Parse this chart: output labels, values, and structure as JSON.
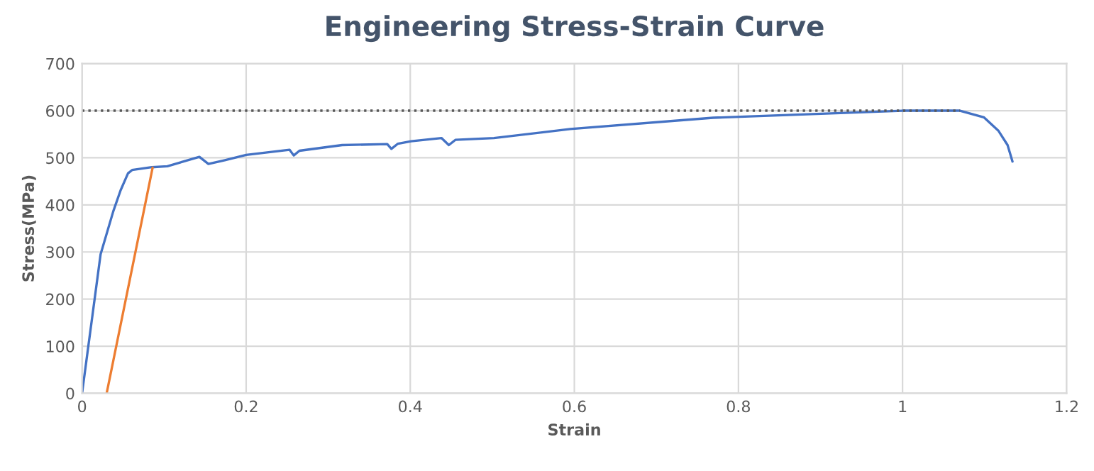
{
  "chart_data": {
    "type": "line",
    "title": "Engineering Stress-Strain Curve",
    "xlabel": "Strain",
    "ylabel": "Stress(MPa)",
    "series": [
      {
        "color": "#4472c4",
        "line_style": "solid",
        "x": [
          0,
          0.0226,
          0.038,
          0.047,
          0.056,
          0.061,
          0.085,
          0.104,
          0.143,
          0.154,
          0.174,
          0.2,
          0.253,
          0.258,
          0.265,
          0.317,
          0.372,
          0.377,
          0.385,
          0.401,
          0.438,
          0.447,
          0.455,
          0.502,
          0.595,
          0.769,
          1.0,
          1.07,
          1.099,
          1.117,
          1.128,
          1.134
        ],
        "values": [
          0,
          295,
          386,
          431,
          467,
          474,
          480,
          482,
          502,
          487,
          495,
          506,
          517,
          505,
          515,
          527,
          529,
          519,
          530,
          535,
          542,
          527,
          538,
          542,
          561,
          585,
          600,
          600,
          586,
          557,
          527,
          492
        ]
      },
      {
        "color": "#ed7d31",
        "line_style": "solid",
        "x": [
          0.03,
          0.086
        ],
        "values": [
          0,
          479
        ]
      },
      {
        "color": "#595959",
        "line_style": "dotted",
        "x": [
          0,
          1.07
        ],
        "values": [
          600,
          600
        ]
      }
    ],
    "xlim": [
      0,
      1.2
    ],
    "xticks": [
      0,
      0.2,
      0.4,
      0.6,
      0.8,
      1,
      1.2
    ],
    "ylim": [
      0,
      700
    ],
    "yticks": [
      0,
      100,
      200,
      300,
      400,
      500,
      600,
      700
    ],
    "grid": true,
    "marker": "none"
  }
}
